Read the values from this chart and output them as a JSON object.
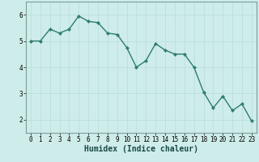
{
  "x": [
    0,
    1,
    2,
    3,
    4,
    5,
    6,
    7,
    8,
    9,
    10,
    11,
    12,
    13,
    14,
    15,
    16,
    17,
    18,
    19,
    20,
    21,
    22,
    23
  ],
  "y": [
    5.0,
    5.0,
    5.45,
    5.3,
    5.45,
    5.95,
    5.75,
    5.7,
    5.3,
    5.25,
    4.75,
    4.0,
    4.25,
    4.9,
    4.65,
    4.5,
    4.5,
    4.0,
    3.05,
    2.45,
    2.9,
    2.35,
    2.6,
    1.95
  ],
  "line_color": "#2e7d6e",
  "marker": "D",
  "marker_size": 2.2,
  "line_width": 1.0,
  "xlabel": "Humidex (Indice chaleur)",
  "ylim": [
    1.5,
    6.5
  ],
  "xlim": [
    -0.5,
    23.5
  ],
  "yticks": [
    2,
    3,
    4,
    5,
    6
  ],
  "xticks": [
    0,
    1,
    2,
    3,
    4,
    5,
    6,
    7,
    8,
    9,
    10,
    11,
    12,
    13,
    14,
    15,
    16,
    17,
    18,
    19,
    20,
    21,
    22,
    23
  ],
  "bg_color": "#ceecea",
  "grid_color": "#b8ddd9",
  "tick_fontsize": 5.5,
  "xlabel_fontsize": 7.0,
  "spine_color": "#7a9e9a"
}
